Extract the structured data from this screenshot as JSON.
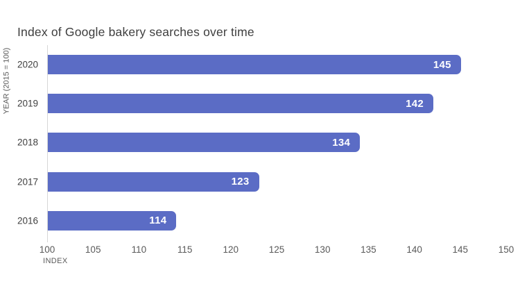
{
  "chart_data": {
    "type": "bar",
    "orientation": "horizontal",
    "title": "Index of Google bakery searches over time",
    "categories": [
      "2020",
      "2019",
      "2018",
      "2017",
      "2016"
    ],
    "values": [
      145,
      142,
      134,
      123,
      114
    ],
    "xlabel": "INDEX",
    "ylabel": "YEAR (2015 = 100)",
    "xlim": [
      100,
      150
    ],
    "xticks": [
      100,
      105,
      110,
      115,
      120,
      125,
      130,
      135,
      140,
      145,
      150
    ],
    "grid": false,
    "legend": false,
    "colors": {
      "bar": "#5b6cc5",
      "value_label": "#ffffff",
      "axis_line": "#d6d6d6",
      "tick_text": "#595959",
      "title_text": "#3e3e3e",
      "background": "#ffffff"
    }
  }
}
